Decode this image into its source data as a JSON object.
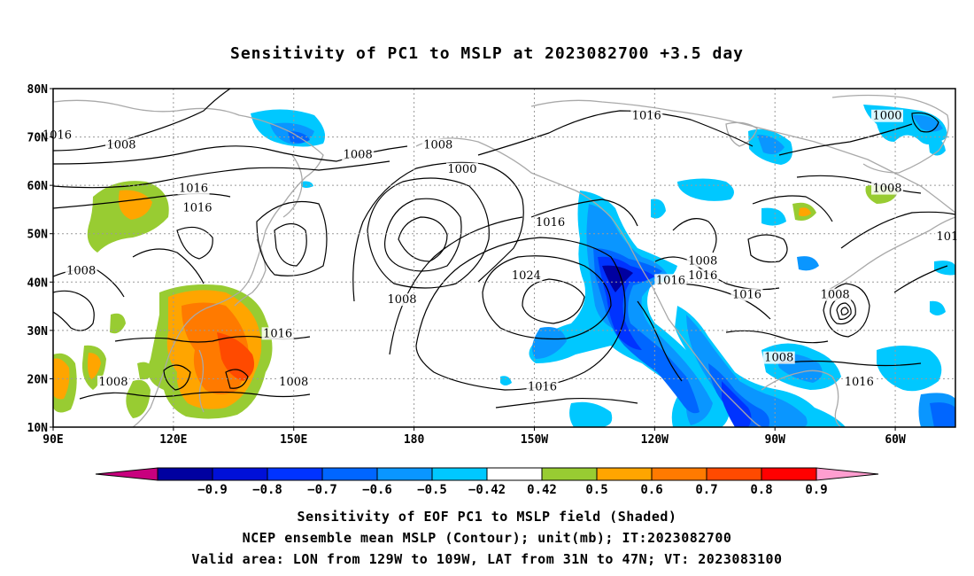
{
  "title": "Sensitivity of PC1 to MSLP at 2023082700 +3.5 day",
  "map": {
    "lat_labels": [
      "80N",
      "70N",
      "60N",
      "50N",
      "40N",
      "30N",
      "20N",
      "10N"
    ],
    "lon_labels": [
      "90E",
      "120E",
      "150E",
      "180",
      "150W",
      "120W",
      "90W",
      "60W"
    ],
    "lat_values": [
      80,
      70,
      60,
      50,
      40,
      30,
      20,
      10
    ],
    "lon_values": [
      90,
      120,
      150,
      180,
      210,
      240,
      270,
      300
    ],
    "lon_range": [
      90,
      315
    ],
    "lat_range": [
      10,
      80
    ],
    "grid": "dotted",
    "contour_labels": [
      {
        "text": "1016",
        "lon": 91,
        "lat": 70
      },
      {
        "text": "1008",
        "lon": 107,
        "lat": 68
      },
      {
        "text": "1008",
        "lon": 166,
        "lat": 66
      },
      {
        "text": "1008",
        "lon": 186,
        "lat": 68
      },
      {
        "text": "1000",
        "lon": 192,
        "lat": 63
      },
      {
        "text": "1016",
        "lon": 238,
        "lat": 74
      },
      {
        "text": "1000",
        "lon": 298,
        "lat": 74
      },
      {
        "text": "1016",
        "lon": 125,
        "lat": 59
      },
      {
        "text": "1016",
        "lon": 126,
        "lat": 55
      },
      {
        "text": "1008",
        "lon": 298,
        "lat": 59
      },
      {
        "text": "1016",
        "lon": 214,
        "lat": 52
      },
      {
        "text": "1008",
        "lon": 97,
        "lat": 42
      },
      {
        "text": "1008",
        "lon": 177,
        "lat": 36
      },
      {
        "text": "1024",
        "lon": 208,
        "lat": 41
      },
      {
        "text": "1008",
        "lon": 252,
        "lat": 44
      },
      {
        "text": "1016",
        "lon": 252,
        "lat": 41
      },
      {
        "text": "1016",
        "lon": 244,
        "lat": 40
      },
      {
        "text": "1016",
        "lon": 263,
        "lat": 37
      },
      {
        "text": "1008",
        "lon": 285,
        "lat": 37
      },
      {
        "text": "1016",
        "lon": 146,
        "lat": 29
      },
      {
        "text": "1008",
        "lon": 150,
        "lat": 19
      },
      {
        "text": "1008",
        "lon": 105,
        "lat": 19
      },
      {
        "text": "1016",
        "lon": 212,
        "lat": 18
      },
      {
        "text": "1008",
        "lon": 271,
        "lat": 24
      },
      {
        "text": "1016",
        "lon": 291,
        "lat": 19
      },
      {
        "text": "101",
        "lon": 313,
        "lat": 49
      }
    ]
  },
  "colorbar": {
    "tick_labels": [
      "-0.9",
      "-0.8",
      "-0.7",
      "-0.6",
      "-0.5",
      "-0.42",
      "0.42",
      "0.5",
      "0.6",
      "0.7",
      "0.8",
      "0.9"
    ],
    "bin_colors": [
      "#0000a0",
      "#0010d8",
      "#0033ff",
      "#0066ff",
      "#0a96ff",
      "#00c8ff",
      "#ffffff",
      "#98cc32",
      "#ffa500",
      "#ff7a00",
      "#ff4a00",
      "#ff0000"
    ],
    "under_color": "#c8007e",
    "over_color": "#ff9ed0"
  },
  "footer": {
    "line1": "Sensitivity of EOF PC1 to MSLP field (Shaded)",
    "line2": "NCEP ensemble mean MSLP (Contour); unit(mb); IT:2023082700",
    "line3": "Valid area: LON from 129W to 109W, LAT from 31N to 47N; VT: 2023083100"
  }
}
